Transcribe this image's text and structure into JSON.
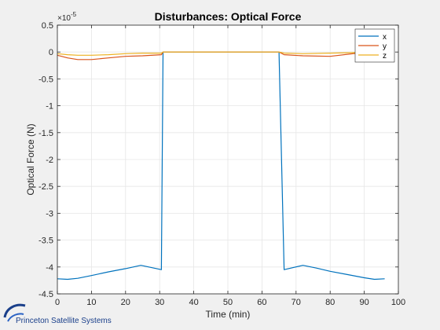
{
  "chart_data": {
    "type": "line",
    "title": "Disturbances: Optical Force",
    "xlabel": "Time (min)",
    "ylabel": "Optical Force (N)",
    "exponent_label": "×10",
    "exponent_power": "-5",
    "xlim": [
      0,
      100
    ],
    "ylim": [
      -4.5,
      0.5
    ],
    "y_scale_factor": 1e-05,
    "xticks": [
      0,
      10,
      20,
      30,
      40,
      50,
      60,
      70,
      80,
      90,
      100
    ],
    "yticks": [
      0.5,
      0,
      -0.5,
      -1,
      -1.5,
      -2,
      -2.5,
      -3,
      -3.5,
      -4,
      -4.5
    ],
    "grid": true,
    "legend_position": "top-right",
    "series": [
      {
        "name": "x",
        "color": "#0072bd",
        "x": [
          0,
          3,
          6,
          10,
          15,
          20,
          24.5,
          30.5,
          31,
          65,
          66.5,
          72,
          76,
          80,
          85,
          90,
          93,
          96
        ],
        "y": [
          -4.22,
          -4.23,
          -4.21,
          -4.16,
          -4.09,
          -4.03,
          -3.97,
          -4.05,
          0.0,
          0.0,
          -4.05,
          -3.97,
          -4.02,
          -4.08,
          -4.14,
          -4.2,
          -4.23,
          -4.22
        ]
      },
      {
        "name": "y",
        "color": "#d95319",
        "x": [
          0,
          3,
          6,
          10,
          15,
          20,
          25,
          30.5,
          31,
          65,
          66.5,
          72,
          80,
          88,
          93,
          96
        ],
        "y": [
          -0.06,
          -0.11,
          -0.14,
          -0.14,
          -0.11,
          -0.08,
          -0.07,
          -0.05,
          0.0,
          0.0,
          -0.05,
          -0.07,
          -0.08,
          -0.02,
          0.01,
          0.02
        ]
      },
      {
        "name": "z",
        "color": "#edb120",
        "x": [
          0,
          3,
          6,
          10,
          15,
          20,
          25,
          30.5,
          31,
          65,
          66.5,
          72,
          80,
          88,
          93,
          96
        ],
        "y": [
          -0.03,
          -0.05,
          -0.06,
          -0.06,
          -0.05,
          -0.03,
          -0.02,
          -0.02,
          0.0,
          0.0,
          -0.02,
          -0.03,
          -0.02,
          -0.01,
          0.0,
          0.0
        ]
      }
    ]
  },
  "logo": {
    "text": "Princeton Satellite Systems"
  }
}
